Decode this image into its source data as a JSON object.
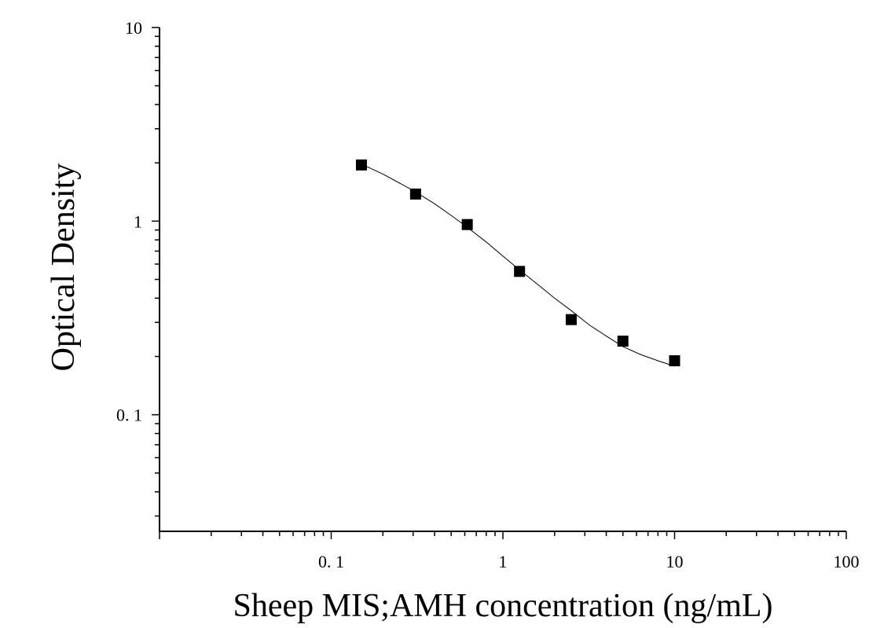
{
  "chart_data": {
    "type": "scatter",
    "title": "",
    "xlabel": "Sheep MIS;AMH concentration (ng/mL)",
    "ylabel": "Optical Density",
    "xscale": "log",
    "yscale": "log",
    "xlim": [
      0.01,
      100
    ],
    "ylim": [
      0.025,
      10
    ],
    "x_ticks": [
      {
        "value": 0.1,
        "label": "0. 1"
      },
      {
        "value": 1,
        "label": "1"
      },
      {
        "value": 10,
        "label": "10"
      },
      {
        "value": 100,
        "label": "100"
      }
    ],
    "y_ticks": [
      {
        "value": 0.1,
        "label": "0. 1"
      },
      {
        "value": 1,
        "label": "1"
      },
      {
        "value": 10,
        "label": "10"
      }
    ],
    "grid": false,
    "legend": "none",
    "marker": "square",
    "color": "#000000",
    "points": [
      {
        "x": 0.15,
        "y": 1.95
      },
      {
        "x": 0.31,
        "y": 1.38
      },
      {
        "x": 0.62,
        "y": 0.96
      },
      {
        "x": 1.25,
        "y": 0.55
      },
      {
        "x": 2.5,
        "y": 0.31
      },
      {
        "x": 5,
        "y": 0.24
      },
      {
        "x": 10,
        "y": 0.19
      }
    ],
    "fit_curve": {
      "type": "4PL",
      "x": [
        0.15,
        0.2,
        0.3,
        0.4,
        0.5,
        0.62,
        0.8,
        1.0,
        1.25,
        1.6,
        2.0,
        2.5,
        3.2,
        4.0,
        5.0,
        6.3,
        8.0,
        10.0
      ],
      "y": [
        1.97,
        1.75,
        1.44,
        1.23,
        1.07,
        0.93,
        0.78,
        0.66,
        0.56,
        0.47,
        0.4,
        0.345,
        0.29,
        0.255,
        0.225,
        0.205,
        0.19,
        0.178
      ]
    }
  }
}
